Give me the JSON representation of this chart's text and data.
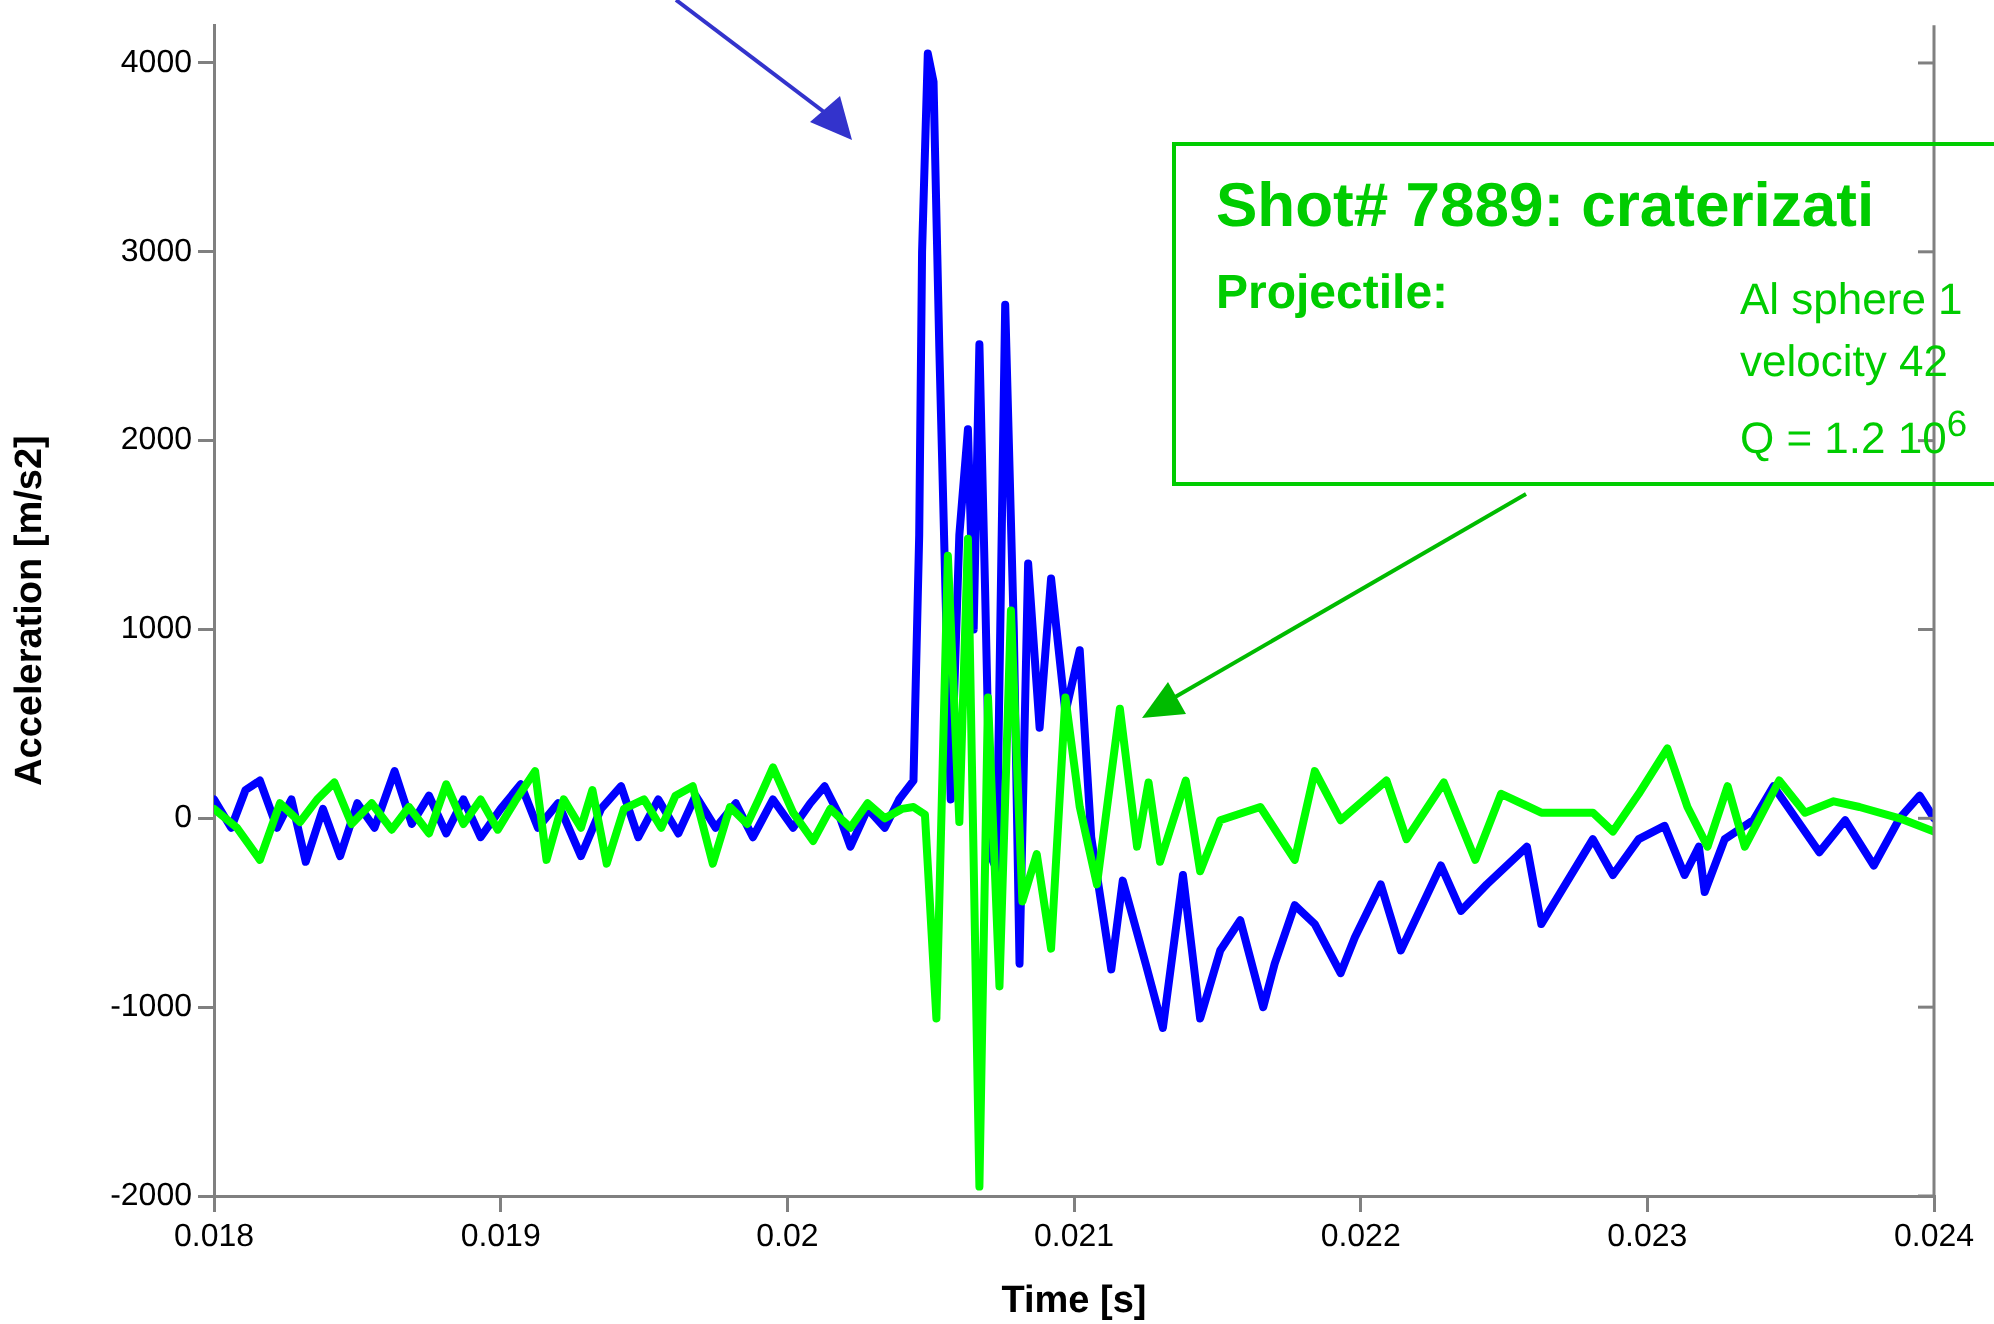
{
  "chart_data": {
    "type": "line",
    "xlabel": "Time [s]",
    "ylabel": "Acceleration [m/s2]",
    "xlim": [
      0.018,
      0.024
    ],
    "xticks": [
      0.018,
      0.019,
      0.02,
      0.021,
      0.022,
      0.023,
      0.024
    ],
    "ylim": [
      -2000,
      4200
    ],
    "yticks": [
      -2000,
      -1000,
      0,
      1000,
      2000,
      3000,
      4000
    ],
    "grid": false,
    "legend": false,
    "marker": "none",
    "line_style": "solid",
    "annotations": [
      "Shot# 7889: craterizati",
      "Projectile:",
      "Al sphere 1",
      "velocity 42",
      "Q = 1.2 10$^{6}$"
    ],
    "series": [
      {
        "color": "#0000ff",
        "x": [
          0.018,
          0.01806,
          0.01811,
          0.01816,
          0.01822,
          0.01827,
          0.01832,
          0.01838,
          0.01844,
          0.0185,
          0.01856,
          0.01863,
          0.01869,
          0.01875,
          0.01881,
          0.01887,
          0.01893,
          0.019,
          0.01907,
          0.01913,
          0.0192,
          0.01928,
          0.01935,
          0.01942,
          0.01948,
          0.01955,
          0.01962,
          0.01968,
          0.01975,
          0.01982,
          0.01988,
          0.01995,
          0.02002,
          0.02008,
          0.02013,
          0.02018,
          0.02022,
          0.02028,
          0.02034,
          0.02039,
          0.02044,
          0.02046,
          0.02047,
          0.02049,
          0.02051,
          0.02053,
          0.02057,
          0.0206,
          0.02063,
          0.02065,
          0.02067,
          0.02069,
          0.02071,
          0.02073,
          0.02076,
          0.02079,
          0.02081,
          0.02084,
          0.02088,
          0.02092,
          0.02097,
          0.02102,
          0.02106,
          0.02113,
          0.02117,
          0.02125,
          0.02131,
          0.02138,
          0.02144,
          0.02151,
          0.02158,
          0.02166,
          0.0217,
          0.02177,
          0.02184,
          0.02193,
          0.02198,
          0.02207,
          0.02214,
          0.02228,
          0.02235,
          0.02244,
          0.02258,
          0.02263,
          0.02281,
          0.02288,
          0.02297,
          0.02306,
          0.02313,
          0.02318,
          0.0232,
          0.02327,
          0.02337,
          0.02344,
          0.0236,
          0.02369,
          0.02379,
          0.02388,
          0.02395,
          0.024
        ],
        "values": [
          100,
          -50,
          150,
          200,
          -50,
          100,
          -230,
          50,
          -200,
          80,
          -50,
          250,
          -30,
          120,
          -80,
          100,
          -100,
          50,
          180,
          -50,
          80,
          -200,
          50,
          170,
          -100,
          100,
          -80,
          120,
          -50,
          80,
          -100,
          100,
          -50,
          80,
          170,
          20,
          -150,
          50,
          -50,
          100,
          200,
          1500,
          3000,
          4050,
          3900,
          2500,
          100,
          1500,
          2060,
          1000,
          2510,
          1200,
          -200,
          -270,
          2720,
          1000,
          -770,
          1350,
          480,
          1270,
          560,
          890,
          -100,
          -800,
          -330,
          -770,
          -1110,
          -300,
          -1060,
          -700,
          -540,
          -1000,
          -770,
          -460,
          -560,
          -820,
          -630,
          -350,
          -700,
          -250,
          -490,
          -350,
          -150,
          -560,
          -110,
          -300,
          -110,
          -40,
          -300,
          -150,
          -390,
          -110,
          -10,
          170,
          -180,
          -10,
          -250,
          0,
          120,
          0
        ]
      },
      {
        "color": "#00ff00",
        "x": [
          0.018,
          0.01808,
          0.01816,
          0.01823,
          0.0183,
          0.01836,
          0.01842,
          0.01848,
          0.01855,
          0.01862,
          0.01868,
          0.01875,
          0.01881,
          0.01887,
          0.01893,
          0.01899,
          0.01905,
          0.01912,
          0.01916,
          0.01922,
          0.01928,
          0.01932,
          0.01937,
          0.01943,
          0.0195,
          0.01956,
          0.01961,
          0.01967,
          0.01974,
          0.0198,
          0.01986,
          0.0199,
          0.01995,
          0.02002,
          0.02009,
          0.02015,
          0.02022,
          0.02028,
          0.02034,
          0.0204,
          0.02044,
          0.02048,
          0.02052,
          0.02056,
          0.0206,
          0.02063,
          0.02067,
          0.0207,
          0.02074,
          0.02078,
          0.02082,
          0.02087,
          0.02092,
          0.02097,
          0.02102,
          0.02108,
          0.02116,
          0.02122,
          0.02126,
          0.0213,
          0.02139,
          0.02144,
          0.02151,
          0.02165,
          0.02177,
          0.02184,
          0.02193,
          0.02209,
          0.02216,
          0.02229,
          0.0224,
          0.02249,
          0.02263,
          0.02281,
          0.02288,
          0.02297,
          0.02307,
          0.02314,
          0.02321,
          0.02328,
          0.02334,
          0.02346,
          0.02355,
          0.02365,
          0.02374,
          0.02388,
          0.024
        ],
        "values": [
          50,
          -50,
          -220,
          80,
          -20,
          100,
          190,
          -30,
          80,
          -60,
          60,
          -80,
          180,
          -30,
          100,
          -60,
          90,
          250,
          -220,
          100,
          -50,
          150,
          -240,
          50,
          100,
          -50,
          120,
          170,
          -240,
          60,
          -30,
          100,
          270,
          30,
          -120,
          50,
          -50,
          80,
          0,
          50,
          60,
          20,
          -1060,
          1390,
          -20,
          1480,
          -1950,
          640,
          -890,
          1100,
          -440,
          -190,
          -690,
          640,
          60,
          -350,
          580,
          -150,
          190,
          -230,
          200,
          -280,
          -10,
          60,
          -220,
          250,
          -10,
          200,
          -110,
          190,
          -220,
          130,
          30,
          30,
          -70,
          130,
          370,
          60,
          -150,
          170,
          -150,
          200,
          30,
          90,
          60,
          0,
          -70
        ]
      }
    ]
  }
}
